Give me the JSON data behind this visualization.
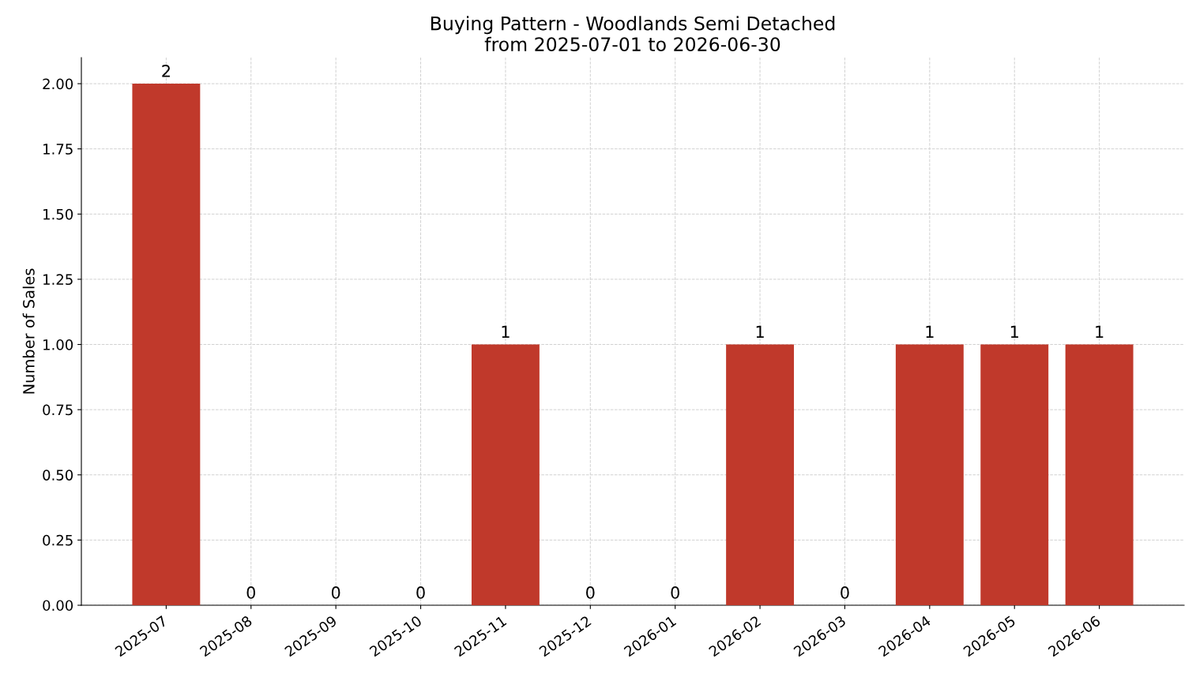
{
  "chart_data": {
    "type": "bar",
    "title": "Buying Pattern - Woodlands Semi Detached\nfrom 2025-07-01 to 2026-06-30",
    "ylabel": "Number of Sales",
    "categories": [
      "2025-07",
      "2025-08",
      "2025-09",
      "2025-10",
      "2025-11",
      "2025-12",
      "2026-01",
      "2026-02",
      "2026-03",
      "2026-04",
      "2026-05",
      "2026-06"
    ],
    "values": [
      2,
      0,
      0,
      0,
      1,
      0,
      0,
      1,
      0,
      1,
      1,
      1
    ],
    "color": "#c0392b",
    "data_labels": true,
    "grid": true,
    "ylim": [
      0,
      2.1
    ],
    "yticks": [
      {
        "value": 0,
        "label": "0.00"
      },
      {
        "value": 0.25,
        "label": "0.25"
      },
      {
        "value": 0.5,
        "label": "0.50"
      },
      {
        "value": 0.75,
        "label": "0.75"
      },
      {
        "value": 1,
        "label": "1.00"
      },
      {
        "value": 1.25,
        "label": "1.25"
      },
      {
        "value": 1.5,
        "label": "1.50"
      },
      {
        "value": 1.75,
        "label": "1.75"
      },
      {
        "value": 2,
        "label": "2.00"
      }
    ]
  }
}
